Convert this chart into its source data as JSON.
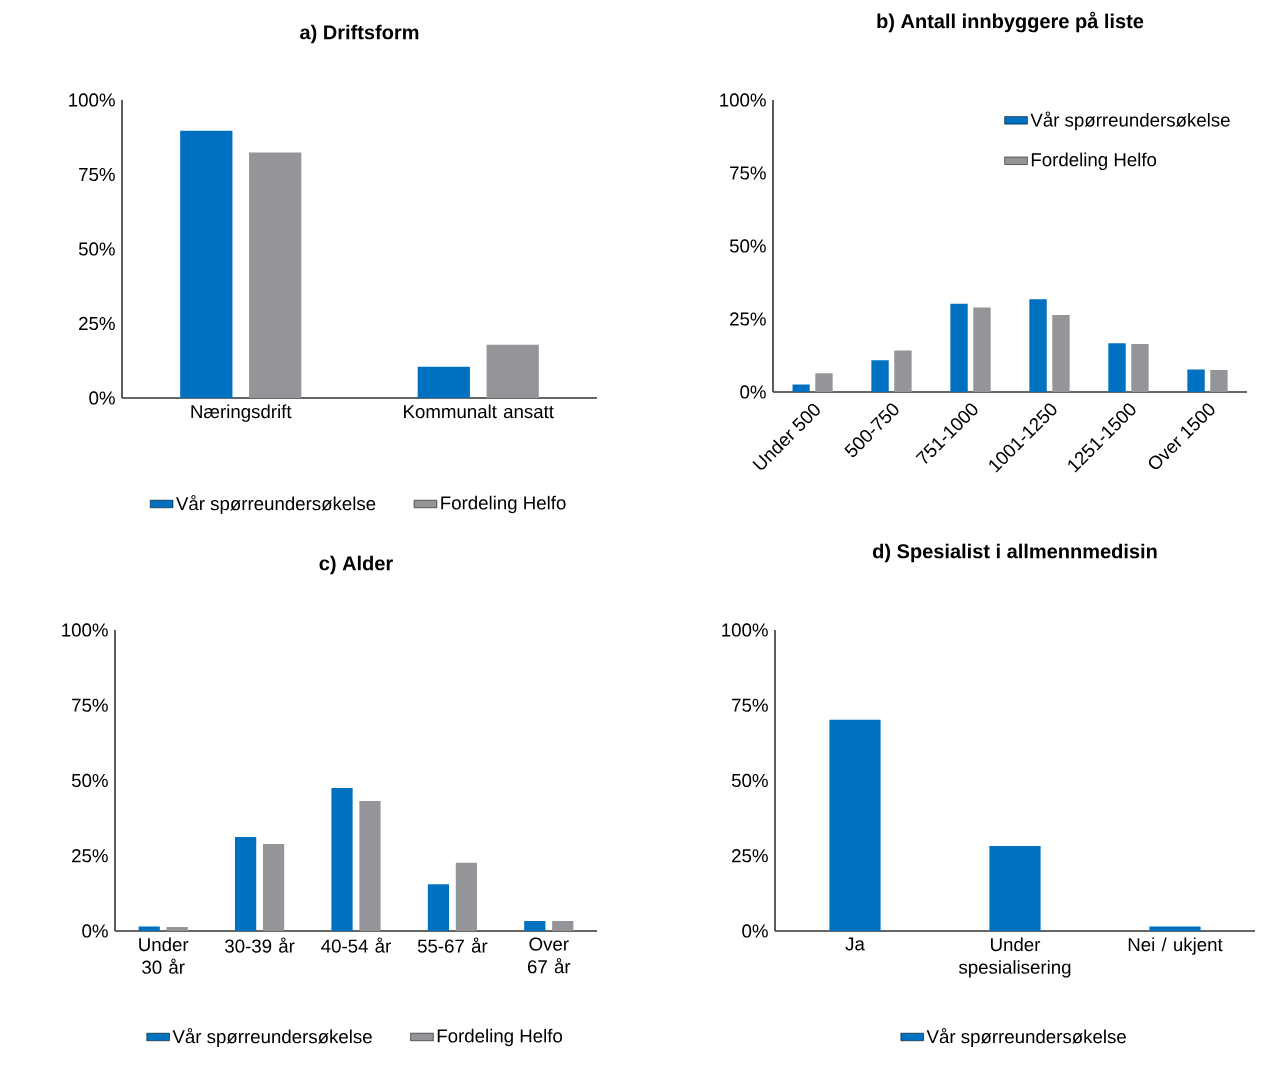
{
  "chart_data": [
    {
      "type": "bar",
      "title": "a) Driftsform",
      "categories": [
        "Næringsdrift",
        "Kommunalt ansatt"
      ],
      "series": [
        {
          "name": "Vår spørreundersøkelse",
          "color": "#0070c0",
          "values": [
            89.7,
            10.5
          ]
        },
        {
          "name": "Fordeling Helfo",
          "color": "#939598",
          "values": [
            82.4,
            17.9
          ]
        }
      ],
      "ylim": [
        0,
        100
      ],
      "yticks": [
        {
          "value": 0,
          "label": "0%"
        },
        {
          "value": 25,
          "label": "25%"
        },
        {
          "value": 50,
          "label": "50%"
        },
        {
          "value": 75,
          "label": "75%"
        },
        {
          "value": 100,
          "label": "100%"
        }
      ],
      "legend": "bottom"
    },
    {
      "type": "bar",
      "title": "b) Antall innbyggere på liste",
      "categories": [
        "Under 500",
        "500-750",
        "751-1000",
        "1001-1250",
        "1251-1500",
        "Over 1500"
      ],
      "series": [
        {
          "name": "Vår spørreundersøkelse",
          "color": "#0070c0",
          "values": [
            2.6,
            10.9,
            30.2,
            31.8,
            16.7,
            7.7
          ]
        },
        {
          "name": "Fordeling Helfo",
          "color": "#939598",
          "values": [
            6.4,
            14.2,
            28.9,
            26.4,
            16.4,
            7.5
          ]
        }
      ],
      "ylim": [
        0,
        100
      ],
      "yticks": [
        {
          "value": 0,
          "label": "0%"
        },
        {
          "value": 25,
          "label": "25%"
        },
        {
          "value": 50,
          "label": "50%"
        },
        {
          "value": 75,
          "label": "75%"
        },
        {
          "value": 100,
          "label": "100%"
        }
      ],
      "legend": "top right"
    },
    {
      "type": "bar",
      "title": "c) Alder",
      "categories": [
        "Under 30 år",
        "30-39 år",
        "40-54 år",
        "55-67 år",
        "Over 67 år"
      ],
      "series": [
        {
          "name": "Vår spørreundersøkelse",
          "color": "#0070c0",
          "values": [
            1.5,
            31.2,
            47.5,
            15.5,
            3.3
          ]
        },
        {
          "name": "Fordeling Helfo",
          "color": "#939598",
          "values": [
            1.3,
            28.9,
            43.2,
            22.7,
            3.3
          ]
        }
      ],
      "ylim": [
        0,
        100
      ],
      "yticks": [
        {
          "value": 0,
          "label": "0%"
        },
        {
          "value": 25,
          "label": "25%"
        },
        {
          "value": 50,
          "label": "50%"
        },
        {
          "value": 75,
          "label": "75%"
        },
        {
          "value": 100,
          "label": "100%"
        }
      ],
      "legend": "bottom"
    },
    {
      "type": "bar",
      "title": "d) Spesialist i allmennmedisin",
      "categories": [
        "Ja",
        "Under spesialisering",
        "Nei / ukjent"
      ],
      "series": [
        {
          "name": "Vår spørreundersøkelse",
          "color": "#0070c0",
          "values": [
            70.2,
            28.2,
            1.5
          ]
        }
      ],
      "ylim": [
        0,
        100
      ],
      "yticks": [
        {
          "value": 0,
          "label": "0%"
        },
        {
          "value": 25,
          "label": "25%"
        },
        {
          "value": 50,
          "label": "50%"
        },
        {
          "value": 75,
          "label": "75%"
        },
        {
          "value": 100,
          "label": "100%"
        }
      ],
      "legend": "bottom"
    }
  ]
}
